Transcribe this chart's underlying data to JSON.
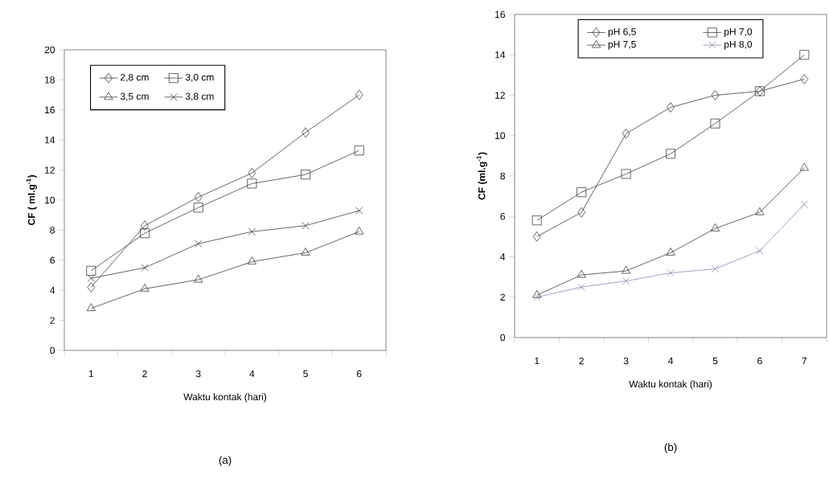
{
  "chart_data": [
    {
      "type": "line",
      "xlabel": "Waktu kontak (hari)",
      "ylabel": "CF ( ml.g$^{-1}$)",
      "categories": [
        "1",
        "2",
        "3",
        "4",
        "5",
        "6"
      ],
      "ylim": [
        0,
        20
      ],
      "yticks": [
        0,
        2,
        4,
        6,
        8,
        10,
        12,
        14,
        16,
        18,
        20
      ],
      "legend": "top left",
      "grid": false,
      "annotations": [
        "(a)"
      ],
      "series": [
        {
          "name": "2,8 cm",
          "color": "#404040",
          "marker": "diamond",
          "values": [
            4.2,
            8.3,
            10.2,
            11.8,
            14.5,
            17.0
          ]
        },
        {
          "name": "3,0 cm",
          "color": "#404040",
          "marker": "square",
          "values": [
            5.3,
            7.8,
            9.5,
            11.1,
            11.7,
            13.3
          ]
        },
        {
          "name": "3,5 cm",
          "color": "#404040",
          "marker": "triangle",
          "values": [
            2.8,
            4.1,
            4.7,
            5.9,
            6.5,
            7.9
          ]
        },
        {
          "name": "3,8 cm",
          "color": "#404040",
          "marker": "cross",
          "values": [
            4.8,
            5.5,
            7.1,
            7.9,
            8.3,
            9.3
          ]
        }
      ]
    },
    {
      "type": "line",
      "xlabel": "Waktu kontak (hari)",
      "ylabel": "CF (ml.g$^{-1}$)",
      "categories": [
        "1",
        "2",
        "3",
        "4",
        "5",
        "6",
        "7"
      ],
      "ylim": [
        0,
        16
      ],
      "yticks": [
        0,
        2,
        4,
        6,
        8,
        10,
        12,
        14,
        16
      ],
      "legend": "top",
      "grid": false,
      "annotations": [
        "(b)"
      ],
      "series": [
        {
          "name": "pH 6,5",
          "color": "#404040",
          "marker": "diamond",
          "values": [
            5.0,
            6.2,
            10.1,
            11.4,
            12.0,
            12.2,
            12.8
          ]
        },
        {
          "name": "pH 7,0",
          "color": "#404040",
          "marker": "square",
          "values": [
            5.8,
            7.2,
            8.1,
            9.1,
            10.6,
            12.2,
            14.0
          ]
        },
        {
          "name": "pH 7,5",
          "color": "#404040",
          "marker": "triangle",
          "values": [
            2.1,
            3.1,
            3.3,
            4.2,
            5.4,
            6.2,
            8.4
          ]
        },
        {
          "name": "pH 8,0",
          "color": "#8c8cb4",
          "marker": "cross",
          "values": [
            2.0,
            2.5,
            2.8,
            3.2,
            3.4,
            4.3,
            6.6
          ]
        }
      ]
    }
  ]
}
